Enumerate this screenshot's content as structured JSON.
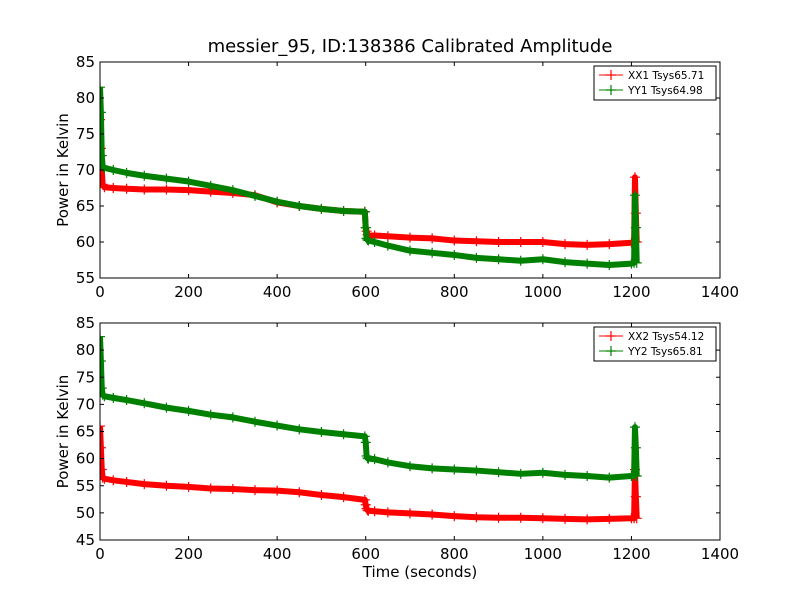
{
  "title": "messier_95, ID:138386 Calibrated Amplitude",
  "chart_data": [
    {
      "type": "line",
      "ylabel": "Power in Kelvin",
      "xlabel": "",
      "xlim": [
        0,
        1400
      ],
      "ylim": [
        55,
        85
      ],
      "xticks": [
        "0",
        "200",
        "400",
        "600",
        "800",
        "1000",
        "1200",
        "1400"
      ],
      "yticks": [
        "55",
        "60",
        "65",
        "70",
        "75",
        "80",
        "85"
      ],
      "grid": false,
      "legend_position": "top-right",
      "series": [
        {
          "name": "XX1 Tsys65.71",
          "color": "#ff0000",
          "x": [
            0,
            2,
            4,
            6,
            10,
            30,
            60,
            100,
            150,
            200,
            250,
            300,
            350,
            400,
            450,
            500,
            550,
            598,
            600,
            602,
            604,
            606,
            620,
            650,
            700,
            750,
            800,
            850,
            900,
            950,
            1000,
            1050,
            1100,
            1150,
            1200,
            1206,
            1208,
            1210,
            1212
          ],
          "y": [
            77,
            73,
            70,
            68,
            67.6,
            67.5,
            67.4,
            67.3,
            67.3,
            67.2,
            67.0,
            66.8,
            66.5,
            65.5,
            65.0,
            64.6,
            64.3,
            64.2,
            62,
            61.5,
            61.0,
            60.9,
            60.9,
            60.8,
            60.6,
            60.5,
            60.2,
            60.1,
            60.0,
            60.0,
            60.0,
            59.7,
            59.6,
            59.7,
            59.9,
            60,
            69,
            64,
            60
          ]
        },
        {
          "name": "YY1 Tsys64.98",
          "color": "#008000",
          "x": [
            0,
            2,
            4,
            6,
            10,
            30,
            60,
            100,
            150,
            200,
            250,
            300,
            350,
            400,
            450,
            500,
            550,
            598,
            600,
            602,
            604,
            606,
            620,
            650,
            700,
            750,
            800,
            850,
            900,
            950,
            1000,
            1050,
            1100,
            1150,
            1200,
            1206,
            1208,
            1210,
            1212
          ],
          "y": [
            81.5,
            78,
            72,
            70.5,
            70.3,
            70.0,
            69.6,
            69.2,
            68.8,
            68.4,
            67.8,
            67.2,
            66.4,
            65.6,
            65.0,
            64.6,
            64.3,
            64.2,
            62,
            60.5,
            60.3,
            60.2,
            60.0,
            59.5,
            58.8,
            58.5,
            58.2,
            57.8,
            57.6,
            57.4,
            57.6,
            57.2,
            57.0,
            56.8,
            57.0,
            57.1,
            66.5,
            62,
            57.1
          ]
        }
      ]
    },
    {
      "type": "line",
      "ylabel": "Power in Kelvin",
      "xlabel": "Time (seconds)",
      "xlim": [
        0,
        1400
      ],
      "ylim": [
        45,
        85
      ],
      "xticks": [
        "0",
        "200",
        "400",
        "600",
        "800",
        "1000",
        "1200",
        "1400"
      ],
      "yticks": [
        "45",
        "50",
        "55",
        "60",
        "65",
        "70",
        "75",
        "80",
        "85"
      ],
      "grid": false,
      "legend_position": "top-right",
      "series": [
        {
          "name": "XX2 Tsys54.12",
          "color": "#ff0000",
          "x": [
            0,
            2,
            4,
            6,
            10,
            30,
            60,
            100,
            150,
            200,
            250,
            300,
            350,
            400,
            450,
            500,
            550,
            598,
            600,
            602,
            604,
            606,
            620,
            650,
            700,
            750,
            800,
            850,
            900,
            950,
            1000,
            1050,
            1100,
            1150,
            1200,
            1206,
            1208,
            1210,
            1212
          ],
          "y": [
            66,
            62,
            58,
            56.5,
            56.3,
            56.0,
            55.7,
            55.3,
            55.0,
            54.8,
            54.5,
            54.4,
            54.2,
            54.1,
            53.8,
            53.3,
            52.9,
            52.4,
            51.5,
            50.8,
            50.5,
            50.4,
            50.3,
            50.1,
            49.9,
            49.7,
            49.4,
            49.2,
            49.1,
            49.1,
            49.0,
            48.9,
            48.8,
            48.9,
            49.0,
            49,
            58,
            53,
            49
          ]
        },
        {
          "name": "YY2 Tsys65.81",
          "color": "#008000",
          "x": [
            0,
            2,
            4,
            6,
            10,
            30,
            60,
            100,
            150,
            200,
            250,
            300,
            350,
            400,
            450,
            500,
            550,
            598,
            600,
            602,
            604,
            606,
            620,
            650,
            700,
            750,
            800,
            850,
            900,
            950,
            1000,
            1050,
            1100,
            1150,
            1200,
            1206,
            1208,
            1210,
            1212
          ],
          "y": [
            82.5,
            78,
            73,
            71.8,
            71.5,
            71.2,
            70.8,
            70.2,
            69.4,
            68.8,
            68.1,
            67.6,
            66.8,
            66.1,
            65.4,
            64.9,
            64.5,
            64.1,
            63,
            60.5,
            60.1,
            60.0,
            59.9,
            59.3,
            58.6,
            58.2,
            58.0,
            57.8,
            57.5,
            57.2,
            57.4,
            57.0,
            56.8,
            56.5,
            56.8,
            56.8,
            65.8,
            62,
            56.8
          ]
        }
      ]
    }
  ]
}
